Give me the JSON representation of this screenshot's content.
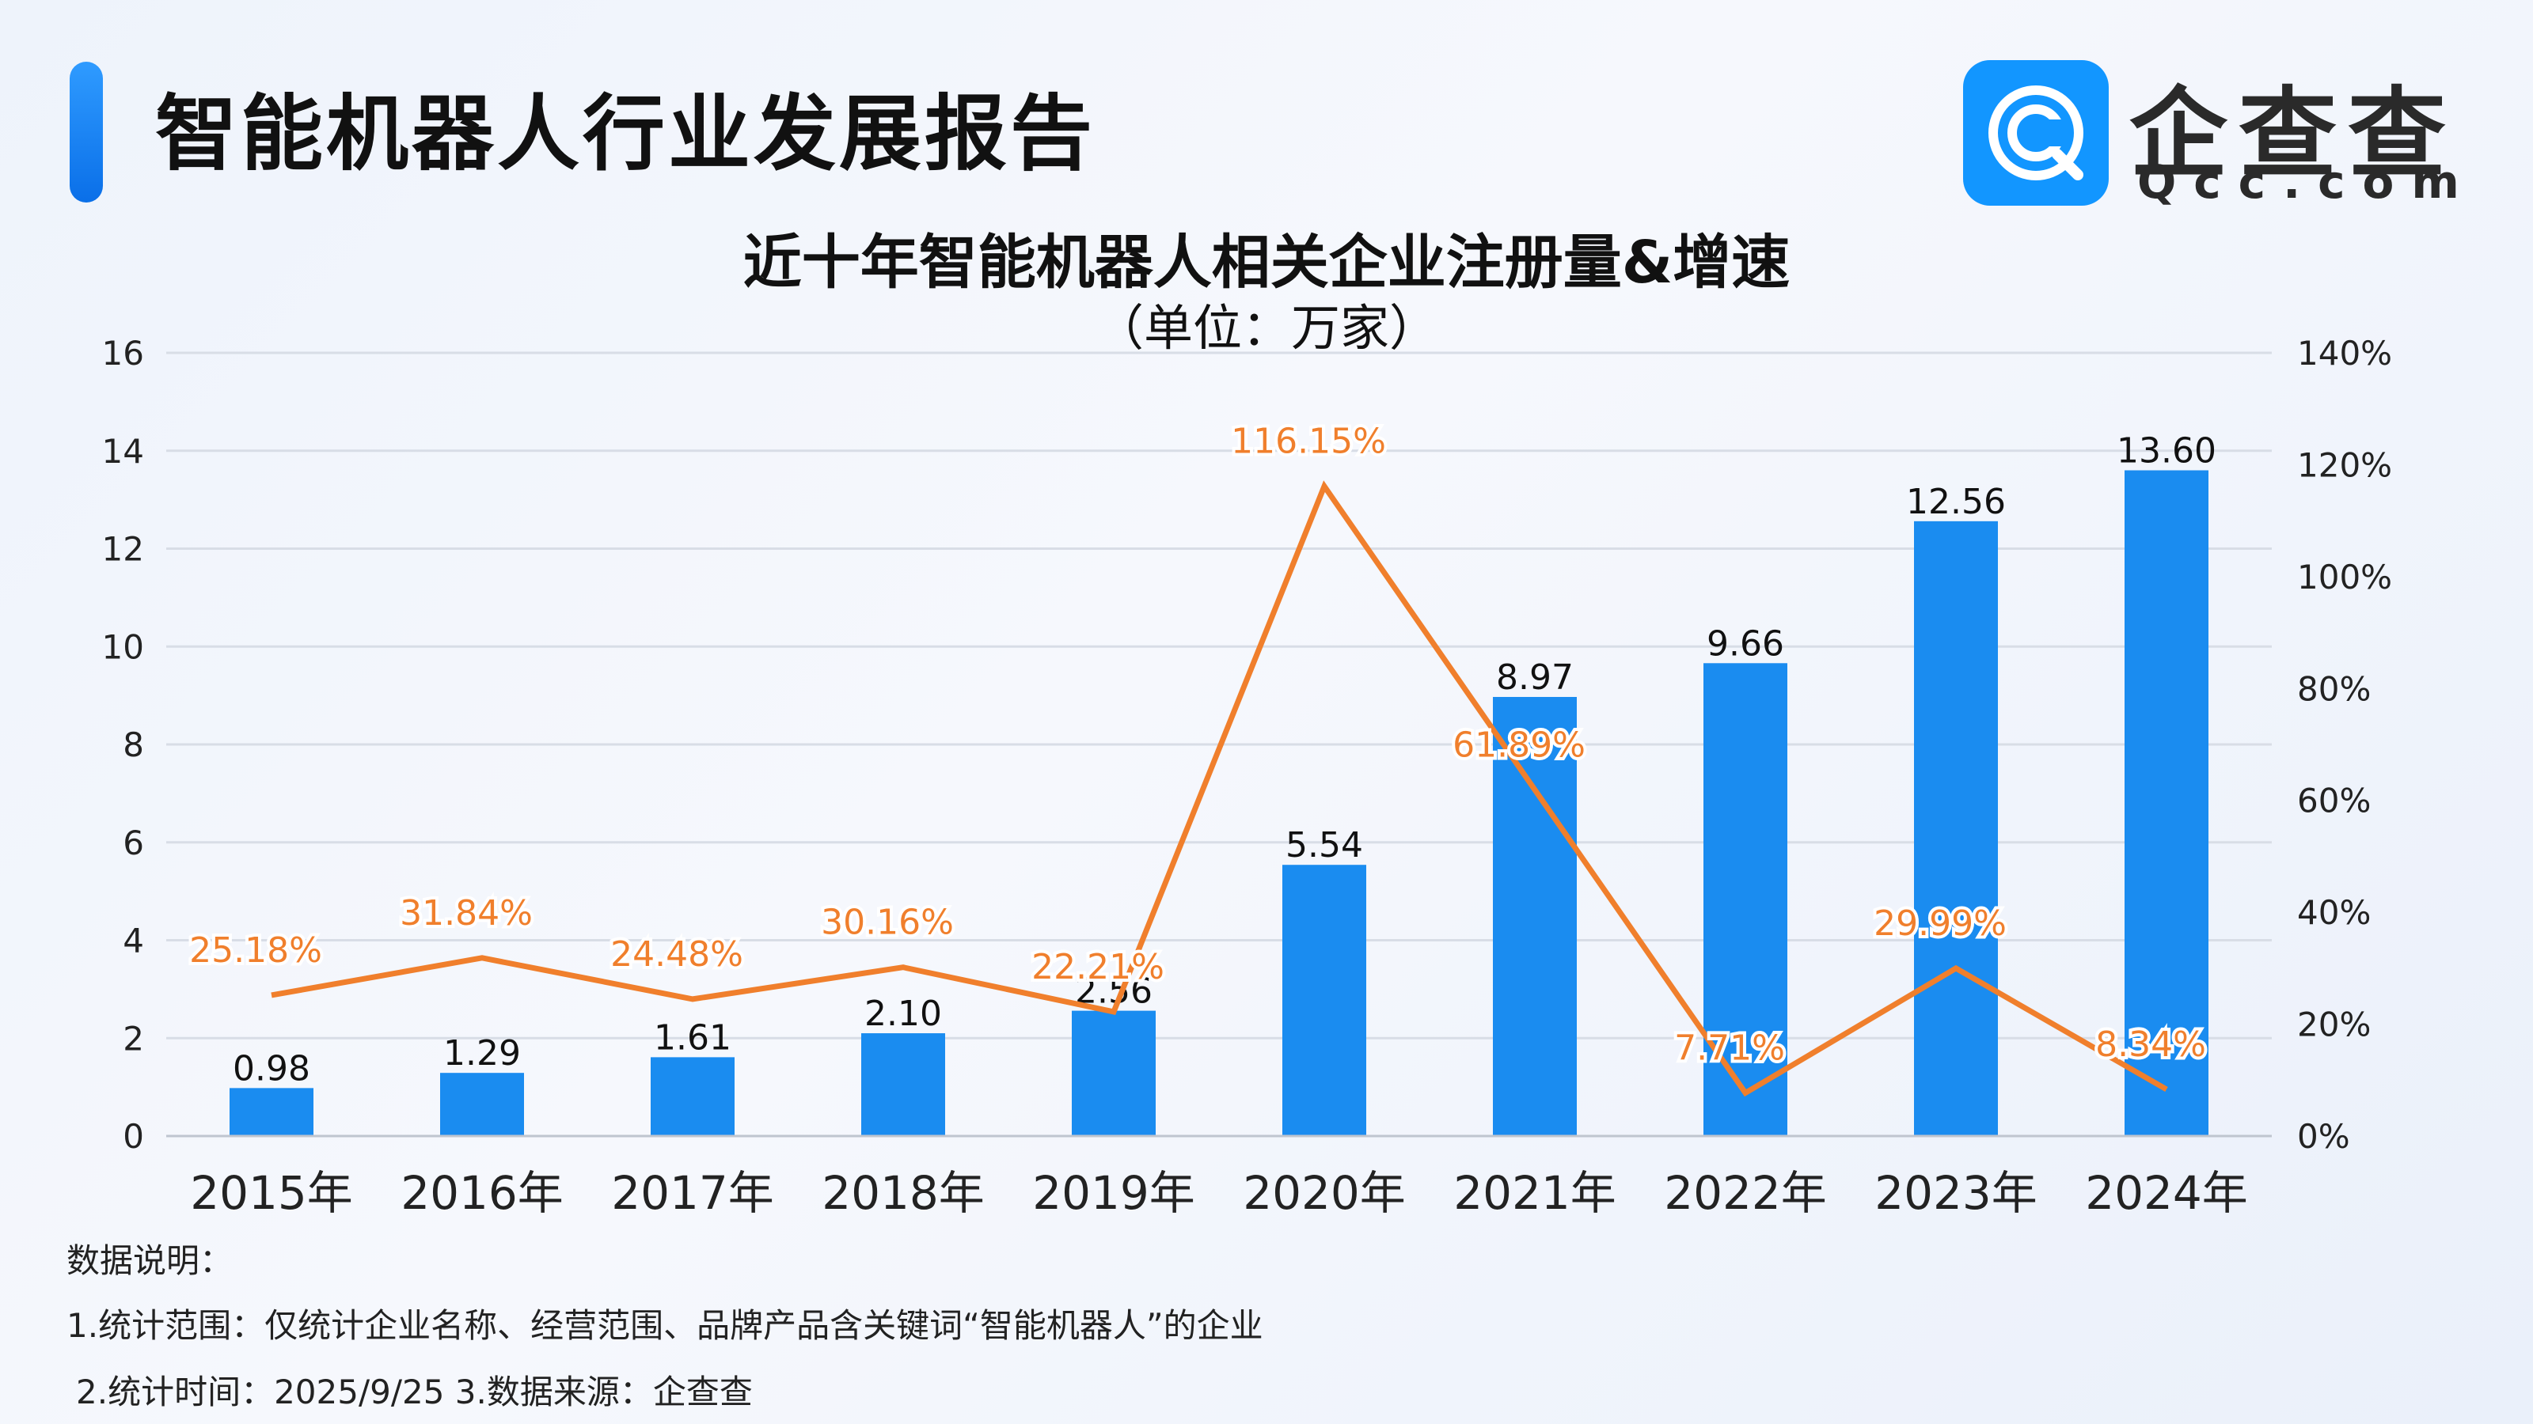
{
  "header": {
    "report_title": "智能机器人行业发展报告",
    "logo_name": "企查查",
    "logo_domain": "Qcc.com"
  },
  "chart_data": {
    "type": "bar",
    "title": "近十年智能机器人相关企业注册量&增速",
    "subtitle": "（单位：万家）",
    "categories": [
      "2015年",
      "2016年",
      "2017年",
      "2018年",
      "2019年",
      "2020年",
      "2021年",
      "2022年",
      "2023年",
      "2024年"
    ],
    "series": [
      {
        "type": "bar",
        "axis": "left",
        "values": [
          0.98,
          1.29,
          1.61,
          2.1,
          2.56,
          5.54,
          8.97,
          9.66,
          12.56,
          13.6
        ],
        "labels": [
          "0.98",
          "1.29",
          "1.61",
          "2.10",
          "2.56",
          "5.54",
          "8.97",
          "9.66",
          "12.56",
          "13.60"
        ],
        "color": "#1a8cf0"
      },
      {
        "type": "line",
        "axis": "right",
        "values": [
          25.18,
          31.84,
          24.48,
          30.16,
          22.21,
          116.15,
          61.89,
          7.71,
          29.99,
          8.34
        ],
        "labels": [
          "25.18%",
          "31.84%",
          "24.48%",
          "30.16%",
          "22.21%",
          "116.15%",
          "61.89%",
          "7.71%",
          "29.99%",
          "8.34%"
        ],
        "color": "#f07f2c"
      }
    ],
    "ylim_left": [
      0,
      16
    ],
    "yticks_left": [
      "0",
      "2",
      "4",
      "6",
      "8",
      "10",
      "12",
      "14",
      "16"
    ],
    "ylim_right": [
      0,
      140
    ],
    "yticks_right": [
      "0%",
      "20%",
      "40%",
      "60%",
      "80%",
      "100%",
      "120%",
      "140%"
    ],
    "grid": true
  },
  "notes": {
    "heading": "数据说明：",
    "line1": "1.统计范围：仅统计企业名称、经营范围、品牌产品含关键词“智能机器人”的企业",
    "line2": "2.统计时间：2025/9/25  3.数据来源：企查查"
  },
  "colors": {
    "bar": "#1a8cf0",
    "line": "#f07f2c",
    "accent": "#1a7ff0",
    "logo_bg": "#1296ff"
  }
}
